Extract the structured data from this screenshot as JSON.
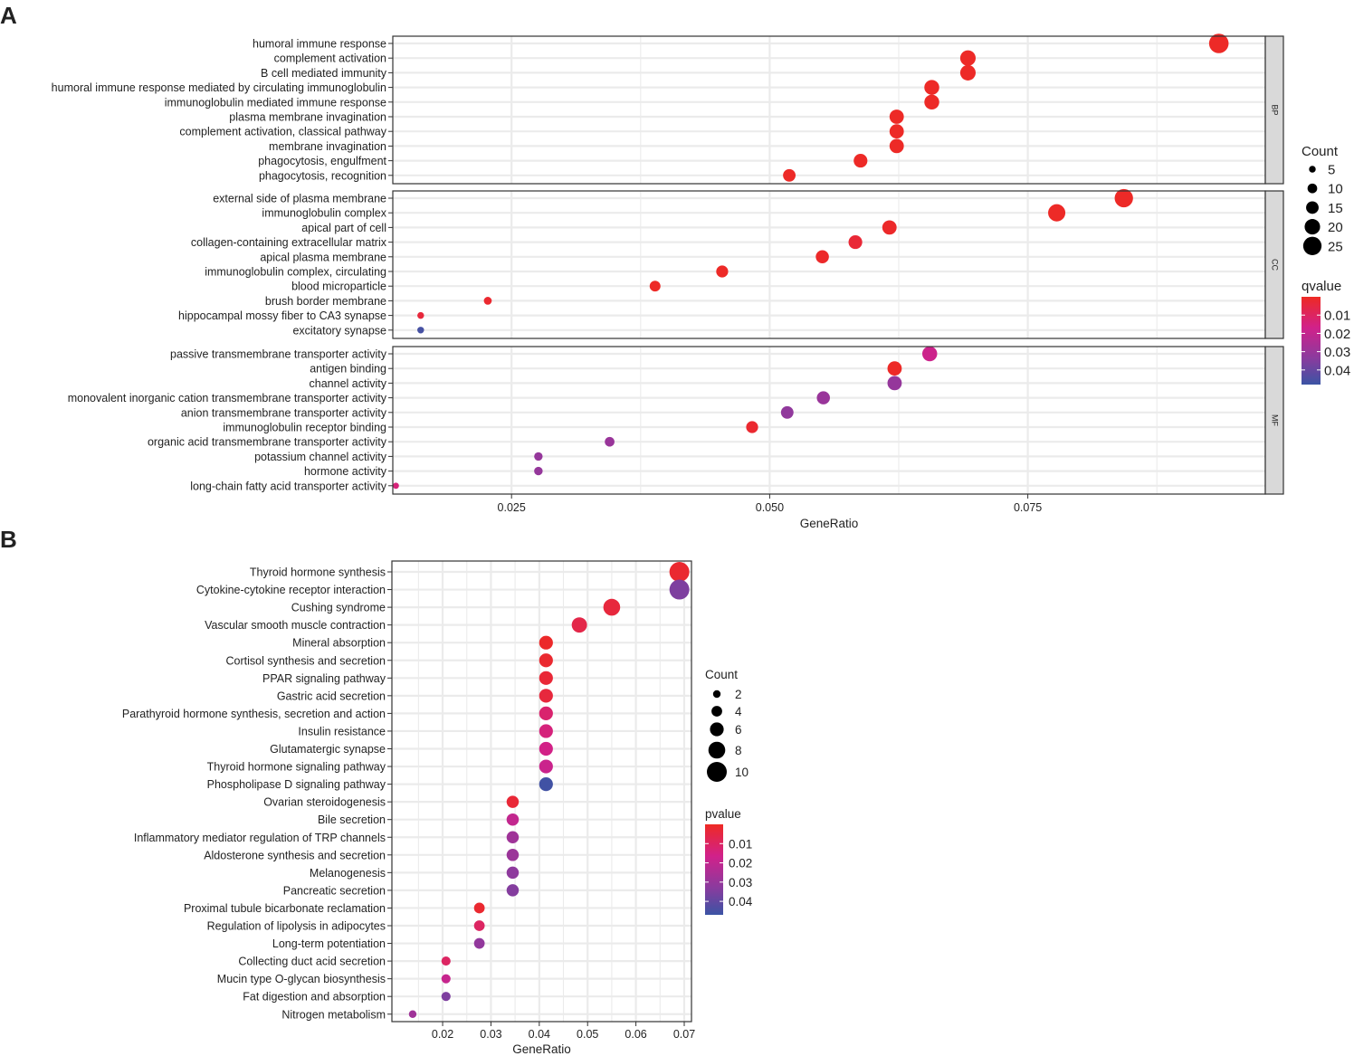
{
  "colors": {
    "low": "#ee2a24",
    "mid": "#d1218a",
    "midhigh": "#8a3b9e",
    "high": "#3b54a4",
    "grid": "#ebebeb",
    "strip": "#d9d9d9"
  },
  "chart_data": [
    {
      "panel": "A",
      "type": "scatter",
      "xlabel": "GeneRatio",
      "xlim": [
        0.0135,
        0.098
      ],
      "xticks": [
        0.025,
        0.05,
        0.075
      ],
      "xtick_labels": [
        "0.025",
        "0.050",
        "0.075"
      ],
      "size_legend": {
        "title": "Count",
        "values": [
          5,
          10,
          15,
          20,
          25
        ],
        "labels": [
          "5",
          "10",
          "15",
          "20",
          "25"
        ]
      },
      "color_legend": {
        "title": "qvalue",
        "labels": [
          "0.01",
          "0.02",
          "0.03",
          "0.04"
        ],
        "breaks": [
          0.01,
          0.02,
          0.03,
          0.04
        ],
        "range": [
          0.0,
          0.048
        ]
      },
      "facets": [
        {
          "strip": "BP",
          "terms": [
            {
              "term": "humoral immune response",
              "gene_ratio": 0.0935,
              "count": 27,
              "qvalue": 0.0005
            },
            {
              "term": "complement activation",
              "gene_ratio": 0.0692,
              "count": 20,
              "qvalue": 0.0005
            },
            {
              "term": "B cell mediated immunity",
              "gene_ratio": 0.0692,
              "count": 20,
              "qvalue": 0.0005
            },
            {
              "term": "humoral immune response mediated by circulating immunoglobulin",
              "gene_ratio": 0.0657,
              "count": 19,
              "qvalue": 0.0005
            },
            {
              "term": "immunoglobulin mediated immune response",
              "gene_ratio": 0.0657,
              "count": 19,
              "qvalue": 0.0005
            },
            {
              "term": "plasma membrane invagination",
              "gene_ratio": 0.0623,
              "count": 18,
              "qvalue": 0.0005
            },
            {
              "term": "complement activation, classical pathway",
              "gene_ratio": 0.0623,
              "count": 18,
              "qvalue": 0.0005
            },
            {
              "term": "membrane invagination",
              "gene_ratio": 0.0623,
              "count": 18,
              "qvalue": 0.0005
            },
            {
              "term": "phagocytosis, engulfment",
              "gene_ratio": 0.0588,
              "count": 17,
              "qvalue": 0.0005
            },
            {
              "term": "phagocytosis, recognition",
              "gene_ratio": 0.0519,
              "count": 15,
              "qvalue": 0.0005
            }
          ]
        },
        {
          "strip": "CC",
          "terms": [
            {
              "term": "external side of plasma membrane",
              "gene_ratio": 0.0843,
              "count": 25,
              "qvalue": 0.0005
            },
            {
              "term": "immunoglobulin complex",
              "gene_ratio": 0.0778,
              "count": 23,
              "qvalue": 0.0005
            },
            {
              "term": "apical part of cell",
              "gene_ratio": 0.0616,
              "count": 18,
              "qvalue": 0.001
            },
            {
              "term": "collagen-containing extracellular matrix",
              "gene_ratio": 0.0583,
              "count": 17,
              "qvalue": 0.003
            },
            {
              "term": "apical plasma membrane",
              "gene_ratio": 0.0551,
              "count": 16,
              "qvalue": 0.001
            },
            {
              "term": "immunoglobulin complex, circulating",
              "gene_ratio": 0.0454,
              "count": 14,
              "qvalue": 0.0005
            },
            {
              "term": "blood microparticle",
              "gene_ratio": 0.0389,
              "count": 12,
              "qvalue": 0.0005
            },
            {
              "term": "brush border membrane",
              "gene_ratio": 0.0227,
              "count": 7,
              "qvalue": 0.002
            },
            {
              "term": "hippocampal mossy fiber to CA3 synapse",
              "gene_ratio": 0.0162,
              "count": 5,
              "qvalue": 0.004
            },
            {
              "term": "excitatory synapse",
              "gene_ratio": 0.0162,
              "count": 5,
              "qvalue": 0.046
            }
          ]
        },
        {
          "strip": "MF",
          "terms": [
            {
              "term": "passive transmembrane transporter activity",
              "gene_ratio": 0.0655,
              "count": 19,
              "qvalue": 0.018
            },
            {
              "term": "antigen binding",
              "gene_ratio": 0.0621,
              "count": 18,
              "qvalue": 0.0005
            },
            {
              "term": "channel activity",
              "gene_ratio": 0.0621,
              "count": 18,
              "qvalue": 0.031
            },
            {
              "term": "monovalent inorganic cation transmembrane transporter activity",
              "gene_ratio": 0.0552,
              "count": 16,
              "qvalue": 0.03
            },
            {
              "term": "anion transmembrane transporter activity",
              "gene_ratio": 0.0517,
              "count": 15,
              "qvalue": 0.032
            },
            {
              "term": "immunoglobulin receptor binding",
              "gene_ratio": 0.0483,
              "count": 14,
              "qvalue": 0.002
            },
            {
              "term": "organic acid transmembrane transporter activity",
              "gene_ratio": 0.0345,
              "count": 10,
              "qvalue": 0.03
            },
            {
              "term": "potassium channel activity",
              "gene_ratio": 0.0276,
              "count": 8,
              "qvalue": 0.031
            },
            {
              "term": "hormone activity",
              "gene_ratio": 0.0276,
              "count": 8,
              "qvalue": 0.031
            },
            {
              "term": "long-chain fatty acid transporter activity",
              "gene_ratio": 0.0138,
              "count": 4,
              "qvalue": 0.014
            }
          ]
        }
      ]
    },
    {
      "panel": "B",
      "type": "scatter",
      "xlabel": "GeneRatio",
      "xlim": [
        0.0095,
        0.0715
      ],
      "xticks": [
        0.02,
        0.03,
        0.04,
        0.05,
        0.06,
        0.07
      ],
      "xtick_labels": [
        "0.02",
        "0.03",
        "0.04",
        "0.05",
        "0.06",
        "0.07"
      ],
      "size_legend": {
        "title": "Count",
        "values": [
          2,
          4,
          6,
          8,
          10
        ],
        "labels": [
          "2",
          "4",
          "6",
          "8",
          "10"
        ]
      },
      "color_legend": {
        "title": "pvalue",
        "labels": [
          "0.01",
          "0.02",
          "0.03",
          "0.04"
        ],
        "breaks": [
          0.01,
          0.02,
          0.03,
          0.04
        ],
        "range": [
          0.0,
          0.047
        ]
      },
      "terms": [
        {
          "term": "Thyroid hormone synthesis",
          "gene_ratio": 0.069,
          "count": 10,
          "pvalue": 0.002
        },
        {
          "term": "Cytokine-cytokine receptor interaction",
          "gene_ratio": 0.069,
          "count": 10,
          "pvalue": 0.035
        },
        {
          "term": "Cushing syndrome",
          "gene_ratio": 0.055,
          "count": 8,
          "pvalue": 0.004
        },
        {
          "term": "Vascular smooth muscle contraction",
          "gene_ratio": 0.0483,
          "count": 7,
          "pvalue": 0.006
        },
        {
          "term": "Mineral absorption",
          "gene_ratio": 0.0414,
          "count": 6,
          "pvalue": 0.001
        },
        {
          "term": "Cortisol synthesis and secretion",
          "gene_ratio": 0.0414,
          "count": 6,
          "pvalue": 0.002
        },
        {
          "term": "PPAR signaling pathway",
          "gene_ratio": 0.0414,
          "count": 6,
          "pvalue": 0.003
        },
        {
          "term": "Gastric acid secretion",
          "gene_ratio": 0.0414,
          "count": 6,
          "pvalue": 0.004
        },
        {
          "term": "Parathyroid hormone synthesis, secretion and action",
          "gene_ratio": 0.0414,
          "count": 6,
          "pvalue": 0.012
        },
        {
          "term": "Insulin resistance",
          "gene_ratio": 0.0414,
          "count": 6,
          "pvalue": 0.014
        },
        {
          "term": "Glutamatergic synapse",
          "gene_ratio": 0.0414,
          "count": 6,
          "pvalue": 0.016
        },
        {
          "term": "Thyroid hormone signaling pathway",
          "gene_ratio": 0.0414,
          "count": 6,
          "pvalue": 0.018
        },
        {
          "term": "Phospholipase D signaling pathway",
          "gene_ratio": 0.0414,
          "count": 6,
          "pvalue": 0.046
        },
        {
          "term": "Ovarian steroidogenesis",
          "gene_ratio": 0.0345,
          "count": 5,
          "pvalue": 0.003
        },
        {
          "term": "Bile secretion",
          "gene_ratio": 0.0345,
          "count": 5,
          "pvalue": 0.02
        },
        {
          "term": "Inflammatory mediator regulation of TRP channels",
          "gene_ratio": 0.0345,
          "count": 5,
          "pvalue": 0.028
        },
        {
          "term": "Aldosterone synthesis and secretion",
          "gene_ratio": 0.0345,
          "count": 5,
          "pvalue": 0.029
        },
        {
          "term": "Melanogenesis",
          "gene_ratio": 0.0345,
          "count": 5,
          "pvalue": 0.032
        },
        {
          "term": "Pancreatic secretion",
          "gene_ratio": 0.0345,
          "count": 5,
          "pvalue": 0.034
        },
        {
          "term": "Proximal tubule bicarbonate reclamation",
          "gene_ratio": 0.0276,
          "count": 4,
          "pvalue": 0.002
        },
        {
          "term": "Regulation of lipolysis in adipocytes",
          "gene_ratio": 0.0276,
          "count": 4,
          "pvalue": 0.01
        },
        {
          "term": "Long-term potentiation",
          "gene_ratio": 0.0276,
          "count": 4,
          "pvalue": 0.031
        },
        {
          "term": "Collecting duct acid secretion",
          "gene_ratio": 0.0207,
          "count": 3,
          "pvalue": 0.01
        },
        {
          "term": "Mucin type O-glycan biosynthesis",
          "gene_ratio": 0.0207,
          "count": 3,
          "pvalue": 0.019
        },
        {
          "term": "Fat digestion and absorption",
          "gene_ratio": 0.0207,
          "count": 3,
          "pvalue": 0.035
        },
        {
          "term": "Nitrogen metabolism",
          "gene_ratio": 0.0138,
          "count": 2,
          "pvalue": 0.028
        }
      ]
    }
  ]
}
